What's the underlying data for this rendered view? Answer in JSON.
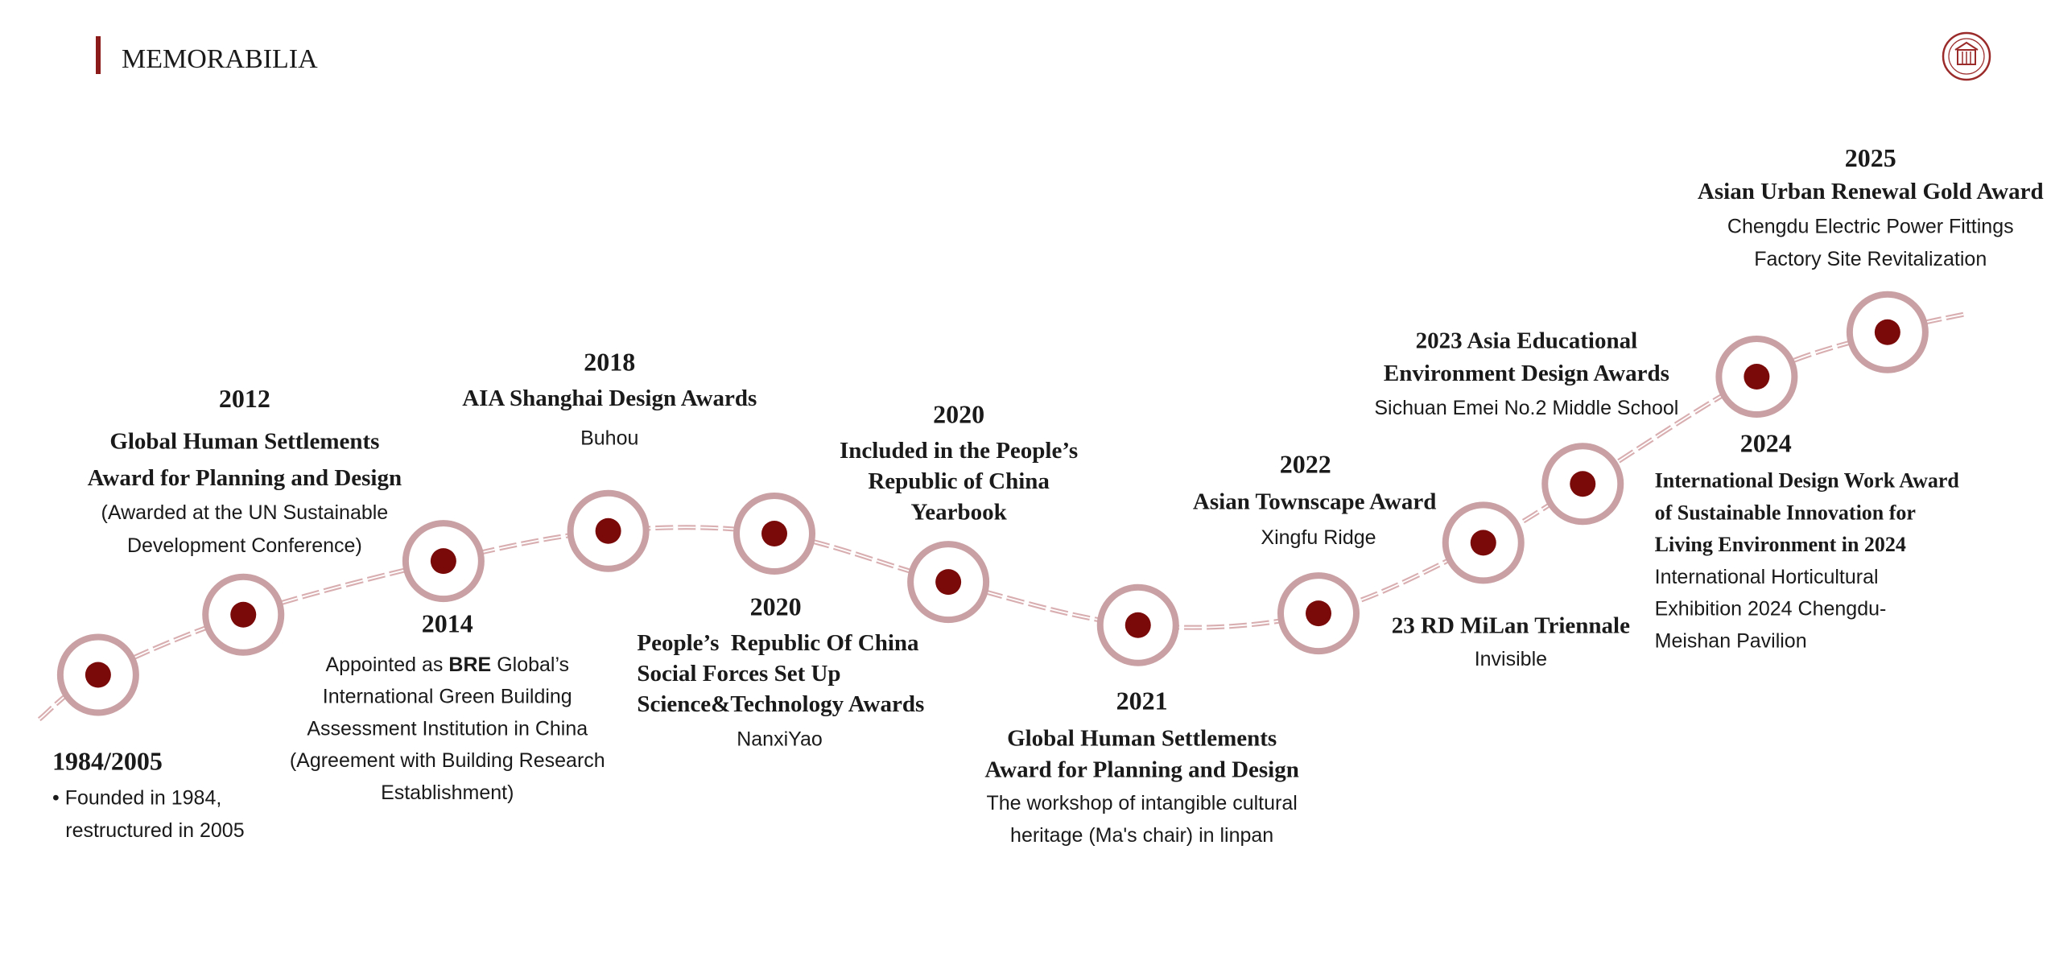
{
  "header": {
    "title": "MEMORABILIA"
  },
  "milestones": [
    {
      "year": "1984/2005",
      "description": [
        "• Founded in 1984,",
        "restructured in 2005"
      ]
    },
    {
      "year": "2012",
      "title": [
        "Global Human Settlements",
        "Award for Planning and Design"
      ],
      "description": [
        "(Awarded at the UN Sustainable",
        "Development Conference)"
      ]
    },
    {
      "year": "2014",
      "description": [
        {
          "prefix": "Appointed as",
          "emphasis": "BRE",
          "suffix": "Global’s"
        },
        "International Green Building",
        "Assessment Institution in China",
        "(Agreement with Building Research",
        "Establishment)"
      ]
    },
    {
      "year": "2018",
      "title": [
        "AIA Shanghai Design Awards"
      ],
      "description": [
        "Buhou"
      ]
    },
    {
      "year": "2020",
      "title": [
        "People’s  Republic Of China",
        "Social Forces Set Up",
        "Science&Technology Awards"
      ],
      "description": [
        "NanxiYao"
      ]
    },
    {
      "year": "2020",
      "title": [
        "Included in the People’s",
        "Republic of China",
        "Yearbook"
      ]
    },
    {
      "year": "2021",
      "title": [
        "Global Human Settlements",
        "Award for Planning and Design"
      ],
      "description": [
        "The workshop of intangible cultural",
        "heritage (Ma's chair) in linpan"
      ]
    },
    {
      "year": "2022",
      "title": [
        "Asian Townscape Award"
      ],
      "description": [
        "Xingfu Ridge"
      ]
    },
    {
      "title": [
        "23 RD MiLan Triennale"
      ],
      "description": [
        "Invisible"
      ]
    },
    {
      "title": [
        "2023 Asia Educational",
        "Environment Design Awards"
      ],
      "description": [
        "Sichuan Emei No.2 Middle School"
      ]
    },
    {
      "year": "2024",
      "title": [
        "International Design Work Award",
        "of Sustainable Innovation for",
        "Living Environment in 2024"
      ],
      "description": [
        "International Horticultural",
        "Exhibition 2024 Chengdu-",
        "Meishan Pavilion"
      ]
    },
    {
      "year": "2025",
      "title": [
        "Asian Urban Renewal Gold Award"
      ],
      "description": [
        "Chengdu Electric Power Fittings",
        "Factory Site Revitalization"
      ]
    }
  ]
}
